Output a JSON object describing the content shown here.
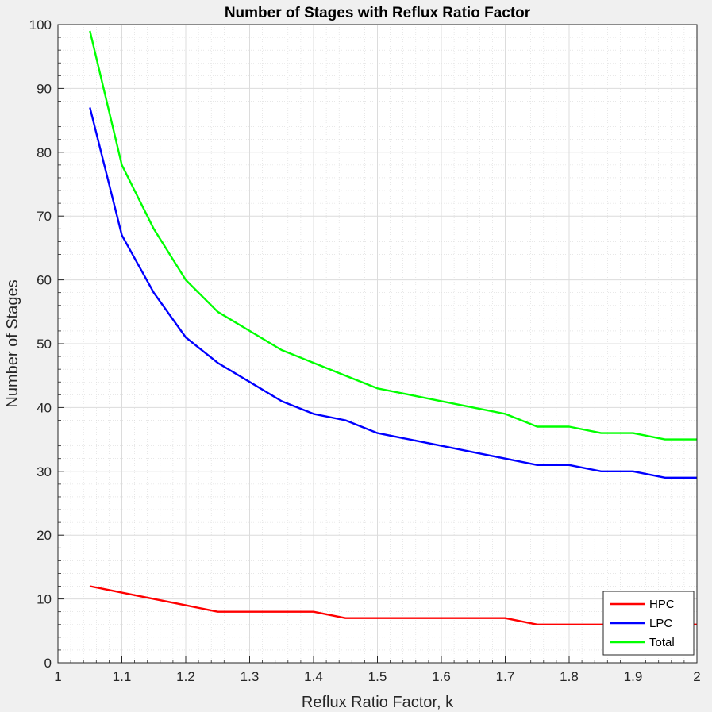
{
  "chart_data": {
    "type": "line",
    "title": "Number of Stages with Reflux Ratio Factor",
    "xlabel": "Reflux Ratio Factor, k",
    "ylabel": "Number of Stages",
    "xlim": [
      1,
      2
    ],
    "ylim": [
      0,
      100
    ],
    "xticks": [
      "1",
      "1.1",
      "1.2",
      "1.3",
      "1.4",
      "1.5",
      "1.6",
      "1.7",
      "1.8",
      "1.9",
      "2"
    ],
    "yticks": [
      "0",
      "10",
      "20",
      "30",
      "40",
      "50",
      "60",
      "70",
      "80",
      "90",
      "100"
    ],
    "grid": true,
    "minor_grid": true,
    "legend_position": "bottom-right",
    "x": [
      1.05,
      1.1,
      1.15,
      1.2,
      1.25,
      1.3,
      1.35,
      1.4,
      1.45,
      1.5,
      1.55,
      1.6,
      1.65,
      1.7,
      1.75,
      1.8,
      1.85,
      1.9,
      1.95,
      2.0
    ],
    "series": [
      {
        "name": "HPC",
        "color": "#ff0000",
        "values": [
          12,
          11,
          10,
          9,
          8,
          8,
          8,
          8,
          7,
          7,
          7,
          7,
          7,
          7,
          6,
          6,
          6,
          6,
          6,
          6
        ]
      },
      {
        "name": "LPC",
        "color": "#0000ff",
        "values": [
          87,
          67,
          58,
          51,
          47,
          44,
          41,
          39,
          38,
          36,
          35,
          34,
          33,
          32,
          31,
          31,
          30,
          30,
          29,
          29
        ]
      },
      {
        "name": "Total",
        "color": "#00ff00",
        "values": [
          99,
          78,
          68,
          60,
          55,
          52,
          49,
          47,
          45,
          43,
          42,
          41,
          40,
          39,
          37,
          37,
          36,
          36,
          35,
          35
        ]
      }
    ]
  }
}
